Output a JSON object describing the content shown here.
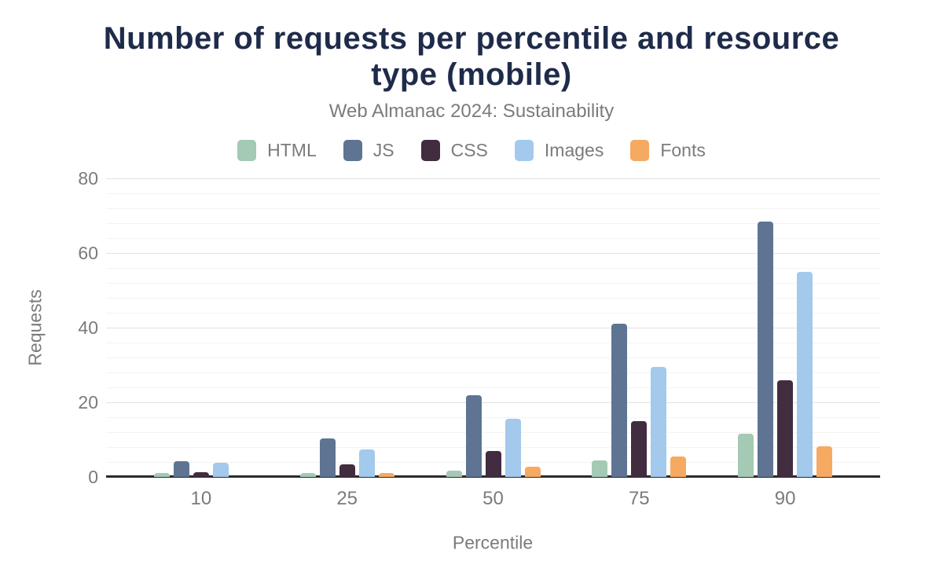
{
  "chart_data": {
    "type": "bar",
    "title": "Number of requests per percentile and resource\ntype (mobile)",
    "subtitle": "Web Almanac 2024: Sustainability",
    "xlabel": "Percentile",
    "ylabel": "Requests",
    "categories": [
      "10",
      "25",
      "50",
      "75",
      "90"
    ],
    "series": [
      {
        "name": "HTML",
        "color": "#a4c9b4",
        "values": [
          1.0,
          1.0,
          1.6,
          4.5,
          11.5
        ]
      },
      {
        "name": "JS",
        "color": "#5e7492",
        "values": [
          4.2,
          10.3,
          22.0,
          41.0,
          68.5
        ]
      },
      {
        "name": "CSS",
        "color": "#412c40",
        "values": [
          1.3,
          3.4,
          7.0,
          15.0,
          26.0
        ]
      },
      {
        "name": "Images",
        "color": "#a3c9ec",
        "values": [
          3.8,
          7.3,
          15.5,
          29.5,
          55.0
        ]
      },
      {
        "name": "Fonts",
        "color": "#f6a961",
        "values": [
          0.0,
          1.0,
          2.8,
          5.5,
          8.2
        ]
      }
    ],
    "ylim": [
      0,
      80
    ],
    "y_ticks": [
      0,
      20,
      40,
      60,
      80
    ],
    "y_major_step": 20,
    "y_minor_step": 4,
    "grid": true,
    "legend_position": "top",
    "colors": {
      "title": "#1f2b4a",
      "axis_text": "#7b7b7b",
      "axis_line": "#2b2b2b",
      "grid_major": "#e2e2e2",
      "grid_minor": "#f3f3f3",
      "background": "#ffffff"
    }
  }
}
